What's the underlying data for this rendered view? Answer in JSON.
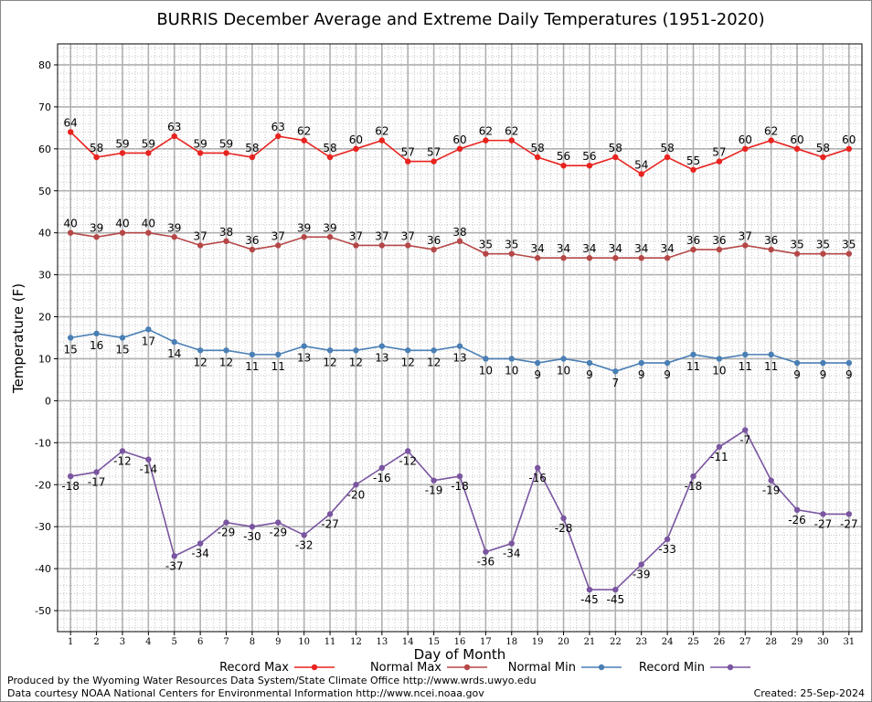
{
  "chart_data": {
    "type": "line",
    "title": "BURRIS December Average and Extreme Daily Temperatures (1951-2020)",
    "xlabel": "Day of Month",
    "ylabel": "Temperature (F)",
    "ylim": [
      -55,
      85
    ],
    "yticks": [
      -50,
      -40,
      -30,
      -20,
      -10,
      0,
      10,
      20,
      30,
      40,
      50,
      60,
      70,
      80
    ],
    "x": [
      1,
      2,
      3,
      4,
      5,
      6,
      7,
      8,
      9,
      10,
      11,
      12,
      13,
      14,
      15,
      16,
      17,
      18,
      19,
      20,
      21,
      22,
      23,
      24,
      25,
      26,
      27,
      28,
      29,
      30,
      31
    ],
    "grid": true,
    "legend_position": "bottom",
    "series": [
      {
        "name": "Record Max",
        "color": "#e8231f",
        "values": [
          64,
          58,
          59,
          59,
          63,
          59,
          59,
          58,
          63,
          62,
          58,
          60,
          62,
          57,
          57,
          60,
          62,
          62,
          58,
          56,
          56,
          58,
          54,
          58,
          55,
          57,
          60,
          62,
          60,
          58,
          60
        ]
      },
      {
        "name": "Normal Max",
        "color": "#b54747",
        "values": [
          40,
          39,
          40,
          40,
          39,
          37,
          38,
          36,
          37,
          39,
          39,
          37,
          37,
          37,
          36,
          38,
          35,
          35,
          34,
          34,
          34,
          34,
          34,
          34,
          36,
          36,
          37,
          36,
          35,
          35,
          35
        ]
      },
      {
        "name": "Normal Min",
        "color": "#4a7fb5",
        "values": [
          15,
          16,
          15,
          17,
          14,
          12,
          12,
          11,
          11,
          13,
          12,
          12,
          13,
          12,
          12,
          13,
          10,
          10,
          9,
          10,
          9,
          7,
          9,
          9,
          11,
          10,
          11,
          11,
          9,
          9,
          9
        ]
      },
      {
        "name": "Record Min",
        "color": "#7a55a0",
        "values": [
          -18,
          -17,
          -12,
          -14,
          -37,
          -34,
          -29,
          -30,
          -29,
          -32,
          -27,
          -20,
          -16,
          -12,
          -19,
          -18,
          -36,
          -34,
          -16,
          -28,
          -45,
          -45,
          -39,
          -33,
          -18,
          -11,
          -7,
          -19,
          -26,
          -27,
          -27
        ]
      }
    ]
  },
  "footer": {
    "produced_by": "Produced by the Wyoming Water Resources Data System/State Climate Office http://www.wrds.uwyo.edu",
    "courtesy": "Data courtesy NOAA National Centers for Environmental Information http://www.ncei.noaa.gov",
    "created": "Created: 25-Sep-2024"
  }
}
